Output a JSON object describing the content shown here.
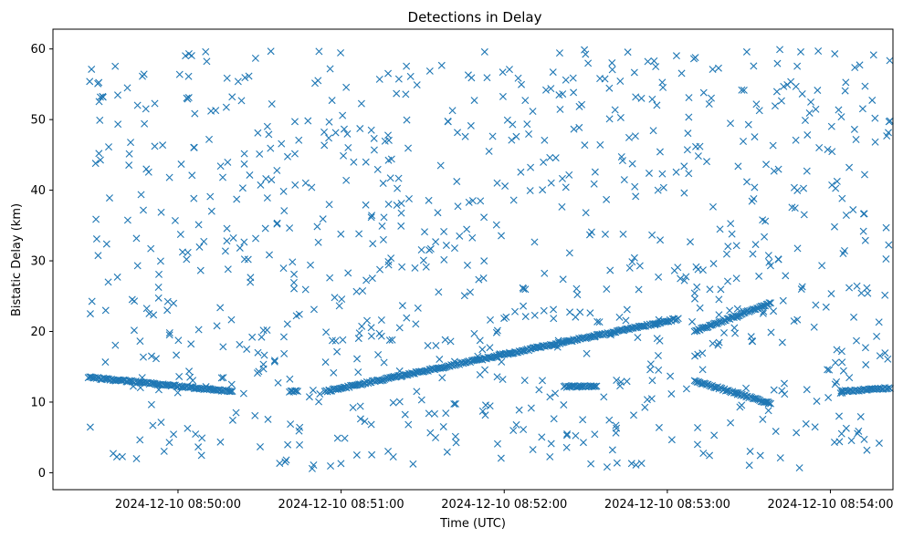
{
  "chart_data": {
    "type": "scatter",
    "title": "Detections in Delay",
    "xlabel": "Time (UTC)",
    "ylabel": "Bistatic Delay (km)",
    "marker": "x",
    "color": "#1f77b4",
    "grid": false,
    "xlim": [
      "2024-12-10 08:49:14",
      "2024-12-10 08:54:23"
    ],
    "ylim": [
      -2.4,
      62.8
    ],
    "x_ticks": [
      "2024-12-10 08:50:00",
      "2024-12-10 08:51:00",
      "2024-12-10 08:52:00",
      "2024-12-10 08:53:00",
      "2024-12-10 08:54:00"
    ],
    "y_ticks": [
      "0",
      "10",
      "20",
      "30",
      "40",
      "50",
      "60"
    ],
    "track_segments": [
      {
        "x_start": "2024-12-10 08:49:27",
        "x_end": "2024-12-10 08:50:20",
        "y_start": 13.5,
        "y_end": 11.5
      },
      {
        "x_start": "2024-12-10 08:50:41",
        "x_end": "2024-12-10 08:50:44",
        "y_start": 11.5,
        "y_end": 11.5
      },
      {
        "x_start": "2024-12-10 08:50:54",
        "x_end": "2024-12-10 08:53:04",
        "y_start": 11.5,
        "y_end": 21.8
      },
      {
        "x_start": "2024-12-10 08:52:22",
        "x_end": "2024-12-10 08:52:34",
        "y_start": 12.2,
        "y_end": 12.2
      },
      {
        "x_start": "2024-12-10 08:53:10",
        "x_end": "2024-12-10 08:53:38",
        "y_start": 13.0,
        "y_end": 9.8
      },
      {
        "x_start": "2024-12-10 08:53:10",
        "x_end": "2024-12-10 08:53:38",
        "y_start": 20.0,
        "y_end": 24.0
      },
      {
        "x_start": "2024-12-10 08:54:04",
        "x_end": "2024-12-10 08:54:22",
        "y_start": 11.5,
        "y_end": 12.0
      }
    ],
    "clutter": {
      "x_range": [
        "2024-12-10 08:49:27",
        "2024-12-10 08:54:22"
      ],
      "y_range": [
        0.5,
        60
      ],
      "approx_count": 900
    }
  }
}
